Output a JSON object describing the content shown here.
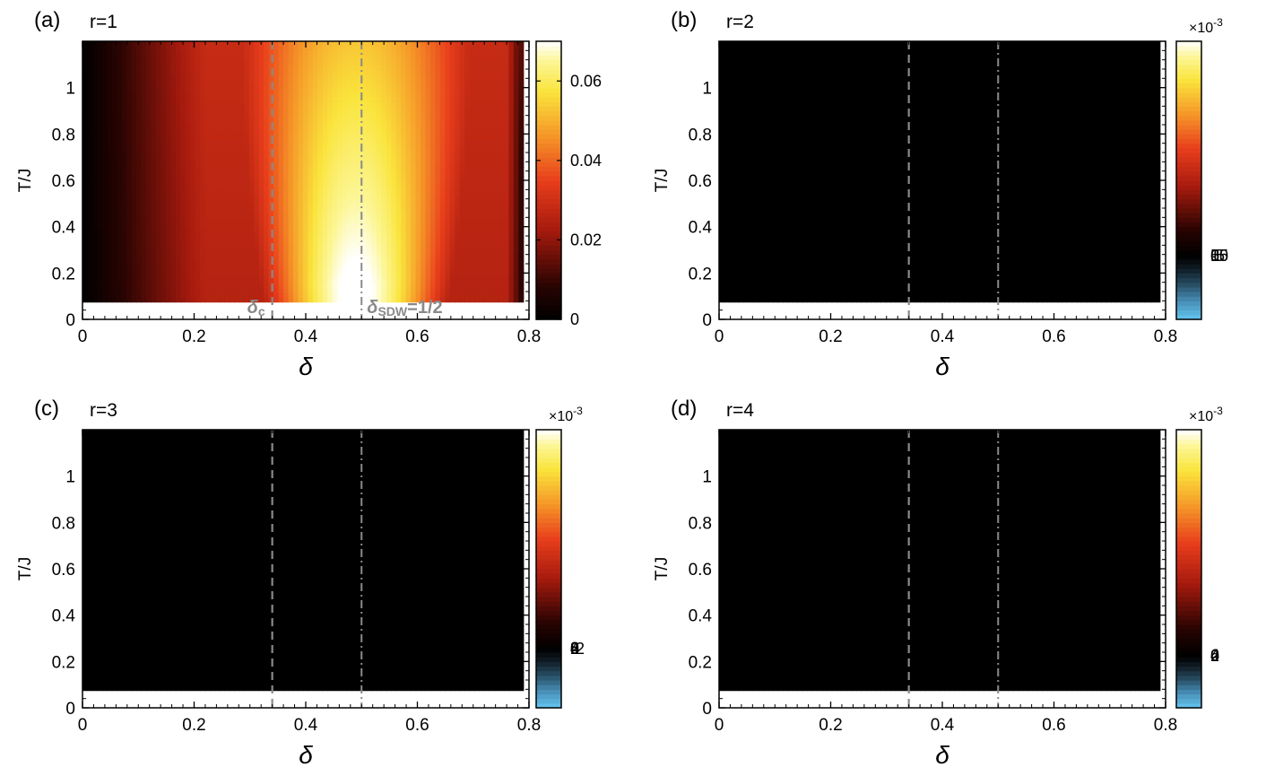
{
  "chart_data": [
    {
      "type": "heatmap",
      "panel": "(a)",
      "title": "r=1",
      "xlabel": "δ",
      "ylabel": "T/J",
      "xlim": [
        0,
        0.8
      ],
      "ylim": [
        0,
        1.2
      ],
      "xticks": [
        "0",
        "0.2",
        "0.4",
        "0.6",
        "0.8"
      ],
      "yticks": [
        "0",
        "0.2",
        "0.4",
        "0.6",
        "0.8",
        "1"
      ],
      "colorbar": {
        "range": [
          0,
          0.07
        ],
        "ticks": [
          "0",
          "0.02",
          "0.04",
          "0.06"
        ],
        "exponent": "",
        "colormap": "hot"
      },
      "data_region": {
        "x": [
          0,
          0.79
        ],
        "y": [
          0.075,
          1.2
        ]
      },
      "annotations": {
        "delta_c": "δ",
        "delta_c_sub": "c",
        "delta_c_x": 0.34,
        "delta_sdw": "δ",
        "delta_sdw_sub": "SDW",
        "delta_sdw_suffix": "=1/2",
        "delta_sdw_x": 0.5
      },
      "features": [
        {
          "x": 0.0,
          "w": 0.1,
          "ystart": 0.075,
          "yend": 1.2,
          "amp": 0.0
        },
        {
          "x": 0.49,
          "w": 0.15,
          "ystart": 0.075,
          "yend": 1.2,
          "amp": 0.072
        }
      ]
    },
    {
      "type": "heatmap",
      "panel": "(b)",
      "title": "r=2",
      "xlabel": "δ",
      "ylabel": "T/J",
      "xlim": [
        0,
        0.8
      ],
      "ylim": [
        0,
        1.2
      ],
      "xticks": [
        "0",
        "0.2",
        "0.4",
        "0.6",
        "0.8"
      ],
      "yticks": [
        "0",
        "0.2",
        "0.4",
        "0.6",
        "0.8",
        "1"
      ],
      "colorbar": {
        "range": [
          -5.5,
          18.5
        ],
        "ticks": [
          "-5",
          "0",
          "5",
          "10",
          "15"
        ],
        "exponent": "×10",
        "exponent_power": "-3",
        "colormap": "hot-cool"
      },
      "data_region": {
        "x": [
          0,
          0.79
        ],
        "y": [
          0.075,
          1.2
        ]
      },
      "annotations": {
        "delta_c_x": 0.34,
        "delta_sdw_x": 0.5
      }
    },
    {
      "type": "heatmap",
      "panel": "(c)",
      "title": "r=3",
      "xlabel": "δ",
      "ylabel": "T/J",
      "xlim": [
        0,
        0.8
      ],
      "ylim": [
        0,
        1.2
      ],
      "xticks": [
        "0",
        "0.2",
        "0.4",
        "0.6",
        "0.8"
      ],
      "yticks": [
        "0",
        "0.2",
        "0.4",
        "0.6",
        "0.8",
        "1"
      ],
      "colorbar": {
        "range": [
          -2.6,
          9.6
        ],
        "ticks": [
          "-2",
          "0",
          "2",
          "4",
          "6",
          "8"
        ],
        "exponent": "×10",
        "exponent_power": "-3",
        "colormap": "hot-cool"
      },
      "data_region": {
        "x": [
          0,
          0.79
        ],
        "y": [
          0.075,
          1.2
        ]
      },
      "annotations": {
        "delta_c_x": 0.34,
        "delta_sdw_x": 0.5
      }
    },
    {
      "type": "heatmap",
      "panel": "(d)",
      "title": "r=4",
      "xlabel": "δ",
      "ylabel": "T/J",
      "xlim": [
        0,
        0.8
      ],
      "ylim": [
        0,
        1.2
      ],
      "xticks": [
        "0",
        "0.2",
        "0.4",
        "0.6",
        "0.8"
      ],
      "yticks": [
        "0",
        "0.2",
        "0.4",
        "0.6",
        "0.8",
        "1"
      ],
      "colorbar": {
        "range": [
          -1.5,
          6.5
        ],
        "ticks": [
          "0",
          "2",
          "4",
          "6"
        ],
        "exponent": "×10",
        "exponent_power": "-3",
        "colormap": "hot-cool"
      },
      "data_region": {
        "x": [
          0,
          0.79
        ],
        "y": [
          0.075,
          1.2
        ]
      },
      "annotations": {
        "delta_c_x": 0.34,
        "delta_sdw_x": 0.5
      }
    }
  ]
}
